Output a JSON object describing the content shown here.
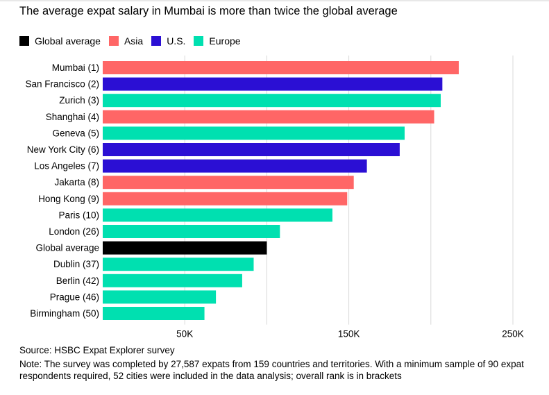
{
  "title": "The average expat salary in Mumbai is more than twice the global average",
  "legend": [
    {
      "label": "Global average",
      "color": "#000000"
    },
    {
      "label": "Asia",
      "color": "#ff6666"
    },
    {
      "label": "U.S.",
      "color": "#2b0fd4"
    },
    {
      "label": "Europe",
      "color": "#00e0b0"
    }
  ],
  "chart_data": {
    "type": "bar",
    "orientation": "horizontal",
    "categories": [
      "Mumbai (1)",
      "San Francisco (2)",
      "Zurich (3)",
      "Shanghai (4)",
      "Geneva (5)",
      "New York City (6)",
      "Los Angeles (7)",
      "Jakarta (8)",
      "Hong Kong (9)",
      "Paris (10)",
      "London (26)",
      "Global average",
      "Dublin (37)",
      "Berlin (42)",
      "Prague (46)",
      "Birmingham (50)"
    ],
    "values": [
      217000,
      207000,
      206000,
      202000,
      184000,
      181000,
      161000,
      153000,
      149000,
      140000,
      108000,
      100000,
      92000,
      85000,
      69000,
      62000
    ],
    "groups": [
      "Asia",
      "U.S.",
      "Europe",
      "Asia",
      "Europe",
      "U.S.",
      "U.S.",
      "Asia",
      "Asia",
      "Europe",
      "Europe",
      "Global average",
      "Europe",
      "Europe",
      "Europe",
      "Europe"
    ],
    "xlim": [
      0,
      250000
    ],
    "xticks": [
      50000,
      150000,
      250000
    ],
    "xtick_labels": [
      "50K",
      "150K",
      "250K"
    ],
    "gridlines": [
      50000,
      100000,
      150000,
      200000,
      250000
    ],
    "legend_position": "top-left"
  },
  "footer": {
    "source": "Source: HSBC Expat Explorer survey",
    "note": "Note: The survey was completed by 27,587 expats from 159 countries and territories. With a minimum sample of 90 expat respondents required, 52 cities were included in the data analysis; overall rank is in brackets"
  }
}
